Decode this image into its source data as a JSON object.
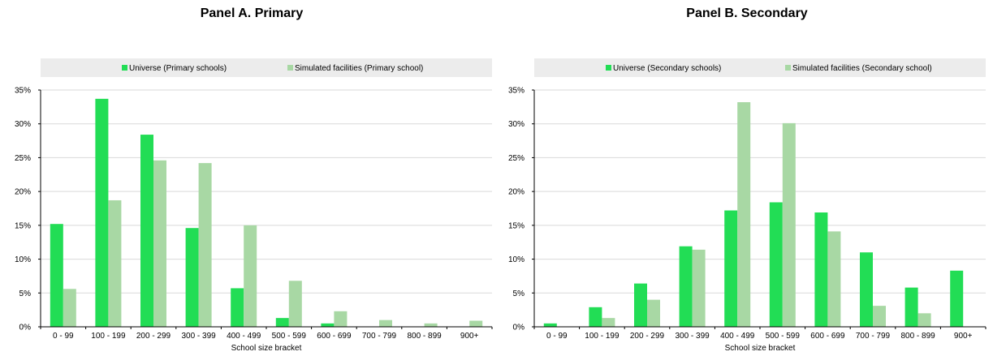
{
  "colors": {
    "universe": "#22dd55",
    "simulated": "#a8d8a4",
    "legend_bg": "#ececec",
    "grid": "#d9d9d9",
    "axis": "#000000"
  },
  "chart_data": [
    {
      "type": "bar",
      "title": "Panel A. Primary",
      "xlabel": "School size bracket",
      "ylabel": "",
      "ylim": [
        0,
        35
      ],
      "yticks": [
        "0%",
        "5%",
        "10%",
        "15%",
        "20%",
        "25%",
        "30%",
        "35%"
      ],
      "grid": true,
      "legend_position": "top",
      "categories": [
        "0 - 99",
        "100 - 199",
        "200 - 299",
        "300 - 399",
        "400 - 499",
        "500 - 599",
        "600 - 699",
        "700 - 799",
        "800 - 899",
        "900+"
      ],
      "series": [
        {
          "name": "Universe (Primary schools)",
          "values": [
            15.2,
            33.7,
            28.4,
            14.6,
            5.7,
            1.3,
            0.5,
            0,
            0,
            0
          ]
        },
        {
          "name": "Simulated facilities (Primary school)",
          "values": [
            5.6,
            18.7,
            24.6,
            24.2,
            15.0,
            6.8,
            2.3,
            1.0,
            0.5,
            0.9
          ]
        }
      ]
    },
    {
      "type": "bar",
      "title": "Panel B. Secondary",
      "xlabel": "School size bracket",
      "ylabel": "",
      "ylim": [
        0,
        35
      ],
      "yticks": [
        "0%",
        "5%",
        "10%",
        "15%",
        "20%",
        "25%",
        "30%",
        "35%"
      ],
      "grid": true,
      "legend_position": "top",
      "categories": [
        "0 - 99",
        "100 - 199",
        "200 - 299",
        "300 - 399",
        "400 - 499",
        "500 - 599",
        "600 - 699",
        "700 - 799",
        "800 - 899",
        "900+"
      ],
      "series": [
        {
          "name": "Universe (Secondary schools)",
          "values": [
            0.5,
            2.9,
            6.4,
            11.9,
            17.2,
            18.4,
            16.9,
            11.0,
            5.8,
            8.3
          ]
        },
        {
          "name": "Simulated facilities (Secondary school)",
          "values": [
            0,
            1.3,
            4.0,
            11.4,
            33.2,
            30.1,
            14.1,
            3.1,
            2.0,
            0
          ]
        }
      ]
    }
  ]
}
